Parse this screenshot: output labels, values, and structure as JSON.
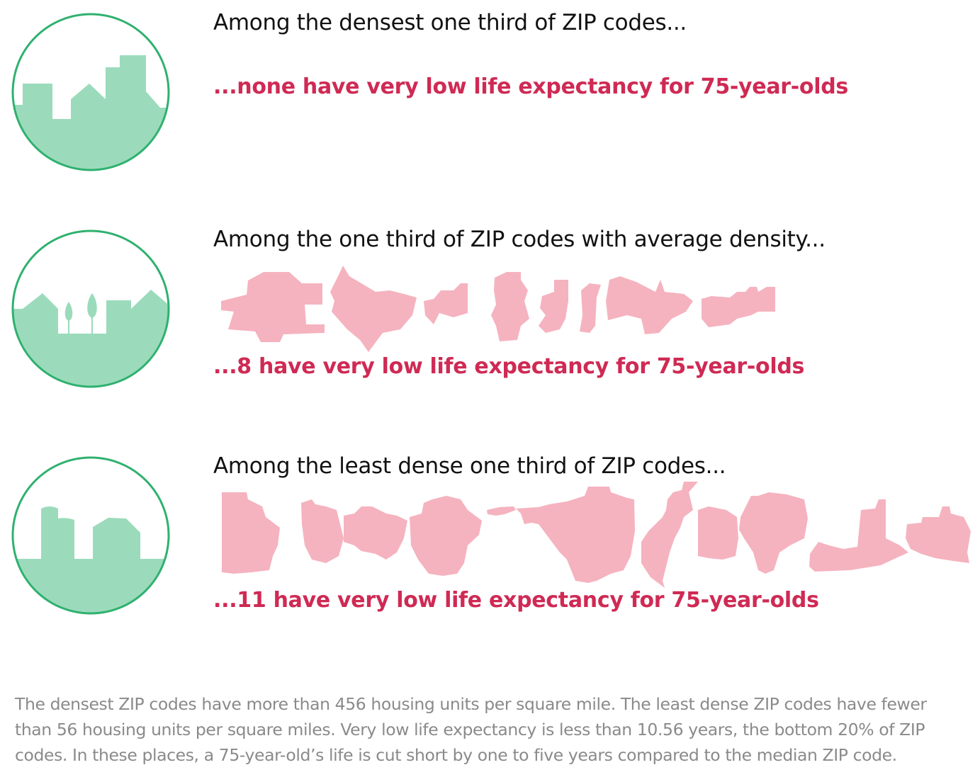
{
  "colors": {
    "accent_red": "#cf2a54",
    "zip_shape_fill": "#f5b3bf",
    "icon_fill": "#9bdbbc",
    "icon_stroke": "#2fb16f",
    "heading_text": "#111111",
    "footnote_text": "#8a8a8a"
  },
  "rows": [
    {
      "icon": "city-skyline-icon",
      "heading": "Among the densest one third of ZIP codes...",
      "result": "...none have very low life expectancy for 75-year-olds",
      "count": 0
    },
    {
      "icon": "suburb-houses-trees-icon",
      "heading": "Among the one third of ZIP codes with average density...",
      "result": "...8 have very low life expectancy for 75-year-olds",
      "count": 8
    },
    {
      "icon": "rural-silo-barn-icon",
      "heading": "Among the least dense one third of ZIP codes...",
      "result": "...11 have very low life expectancy for 75-year-olds",
      "count": 11
    }
  ],
  "footnote": "The densest ZIP codes have more than 456 housing units per square mile. The least dense ZIP codes have fewer than 56 housing units per square miles. Very low life expectancy is less than 10.56 years, the bottom 20% of ZIP codes. In these places, a 75-year-old’s life is cut short by one to five years compared to the median ZIP code."
}
